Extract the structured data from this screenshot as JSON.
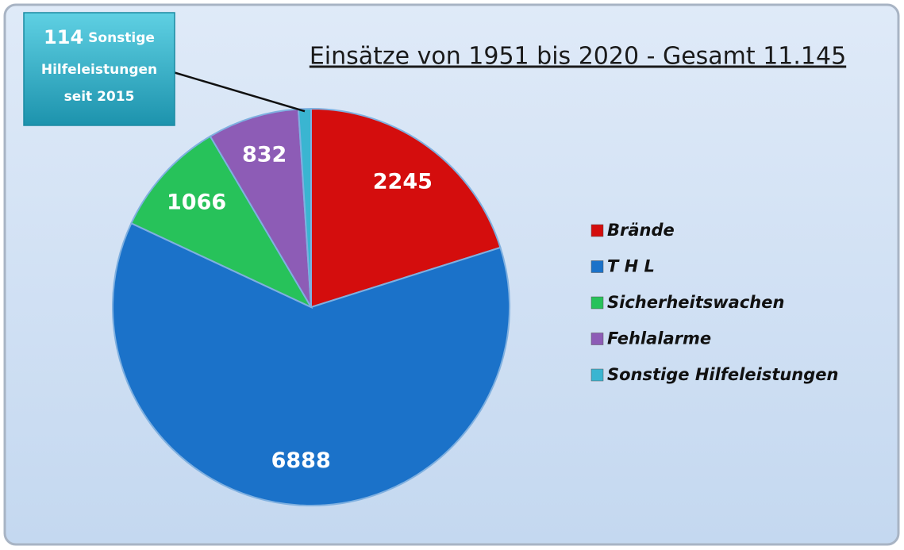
{
  "chart_data": {
    "type": "pie",
    "title": "Einsätze von 1951 bis 2020 - Gesamt 11.145",
    "categories": [
      "Brände",
      "T H L",
      "Sicherheitswachen",
      "Fehlalarme",
      "Sonstige Hilfeleistungen"
    ],
    "values": [
      2245,
      6888,
      1066,
      832,
      114
    ],
    "colors": [
      "#d40d0d",
      "#1b72c9",
      "#27c25a",
      "#8d5cb6",
      "#3ab5d1"
    ],
    "annotation": [
      "Sonstige",
      "Hilfeleistungen",
      "seit 2015"
    ],
    "legend": "right"
  }
}
